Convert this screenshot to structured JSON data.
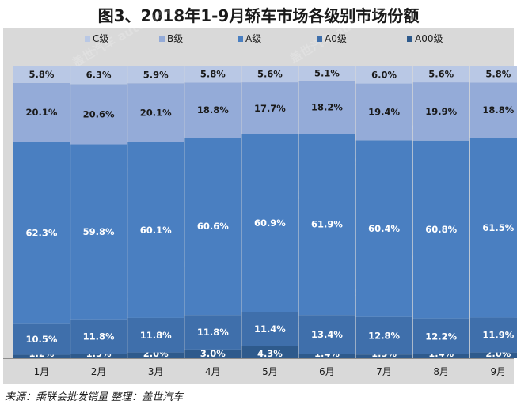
{
  "title": "图3、2018年1-9月轿车市场各级别市场份额",
  "source": "来源：乘联会批发销量 整理：盖世汽车",
  "chart_data": {
    "type": "bar",
    "stacked": true,
    "percent": true,
    "categories": [
      "1月",
      "2月",
      "3月",
      "4月",
      "5月",
      "6月",
      "7月",
      "8月",
      "9月"
    ],
    "series": [
      {
        "name": "A00级",
        "color": "#2e5a8c",
        "values": [
          1.2,
          1.5,
          2.0,
          3.0,
          4.3,
          1.4,
          1.3,
          1.4,
          2.0
        ]
      },
      {
        "name": "A0级",
        "color": "#3f6fab",
        "values": [
          10.5,
          11.8,
          11.8,
          11.8,
          11.4,
          13.4,
          12.8,
          12.2,
          11.9
        ]
      },
      {
        "name": "A级",
        "color": "#4a7fc1",
        "values": [
          62.3,
          59.8,
          60.1,
          60.6,
          60.9,
          61.9,
          60.4,
          60.8,
          61.5
        ]
      },
      {
        "name": "B级",
        "color": "#94abd8",
        "values": [
          20.1,
          20.6,
          20.1,
          18.8,
          17.7,
          18.2,
          19.4,
          19.9,
          18.8
        ]
      },
      {
        "name": "C级",
        "color": "#b9c8e5",
        "values": [
          5.8,
          6.3,
          5.9,
          5.8,
          5.6,
          5.1,
          6.0,
          5.6,
          5.8
        ]
      }
    ],
    "legend_order": [
      "C级",
      "B级",
      "A级",
      "A0级",
      "A00级"
    ],
    "legend_position": "top",
    "ylim": [
      0,
      100
    ],
    "grid": false,
    "watermark": "盖世汽车 auto.gasgoo.com"
  }
}
